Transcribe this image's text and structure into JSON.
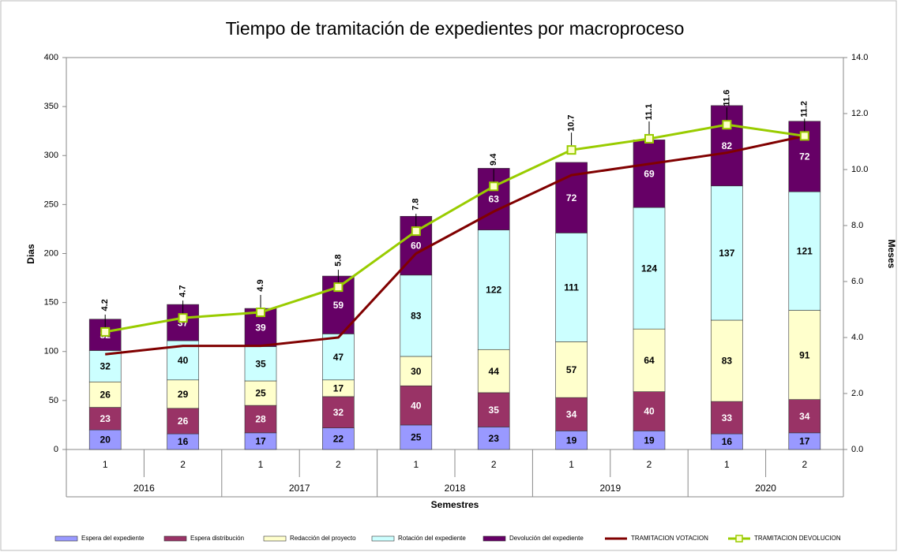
{
  "chart_data": {
    "type": "bar",
    "stacked": true,
    "title": "Tiempo de tramitación de expedientes por macroproceso",
    "y_label": "Dias",
    "y2_label": "Meses",
    "x_label": "Semestres",
    "categories": [
      "1",
      "2",
      "1",
      "2",
      "1",
      "2",
      "1",
      "2",
      "1",
      "2"
    ],
    "category_groups": [
      "2016",
      "2017",
      "2018",
      "2019",
      "2020"
    ],
    "ylim": [
      0,
      400
    ],
    "yticks": [
      0,
      50,
      100,
      150,
      200,
      250,
      300,
      350,
      400
    ],
    "y2lim": [
      0,
      14
    ],
    "y2ticks": [
      {
        "value": 0,
        "label": "0.0"
      },
      {
        "value": 2,
        "label": "2.0"
      },
      {
        "value": 4,
        "label": "4.0"
      },
      {
        "value": 6,
        "label": "6.0"
      },
      {
        "value": 8,
        "label": "8.0"
      },
      {
        "value": 10,
        "label": "10.0"
      },
      {
        "value": 12,
        "label": "12.0"
      },
      {
        "value": 14,
        "label": "14.0"
      }
    ],
    "grid": false,
    "legend": "bottom",
    "series": [
      {
        "name": "Espera del expediente",
        "color": "#9999ff",
        "label_color": "#000000",
        "values": [
          20,
          16,
          17,
          22,
          25,
          23,
          19,
          19,
          16,
          17
        ]
      },
      {
        "name": "Espera distribución",
        "color": "#993366",
        "label_color": "#ffffff",
        "values": [
          23,
          26,
          28,
          32,
          40,
          35,
          34,
          40,
          33,
          34
        ]
      },
      {
        "name": "Redacción del proyecto",
        "color": "#ffffcc",
        "label_color": "#000000",
        "values": [
          26,
          29,
          25,
          17,
          30,
          44,
          57,
          64,
          83,
          91
        ]
      },
      {
        "name": "Rotación del expediente",
        "color": "#ccffff",
        "label_color": "#000000",
        "values": [
          32,
          40,
          35,
          47,
          83,
          122,
          111,
          124,
          137,
          121
        ]
      },
      {
        "name": "Devolución del expediente",
        "color": "#660066",
        "label_color": "#ffffff",
        "values": [
          32,
          37,
          39,
          59,
          60,
          63,
          72,
          69,
          82,
          72
        ]
      },
      {
        "name": "TRAMITACION VOTACION",
        "type": "line",
        "axis": "y2",
        "color": "#800000",
        "values": [
          3.4,
          3.7,
          3.7,
          4.0,
          7.0,
          8.5,
          9.8,
          10.2,
          10.6,
          11.2
        ]
      },
      {
        "name": "TRAMITACION DEVOLUCION",
        "type": "line",
        "axis": "y2",
        "color": "#99cc00",
        "labels": true,
        "values": [
          4.2,
          4.7,
          4.9,
          5.8,
          7.8,
          9.4,
          10.7,
          11.1,
          11.6,
          11.2
        ]
      }
    ]
  }
}
